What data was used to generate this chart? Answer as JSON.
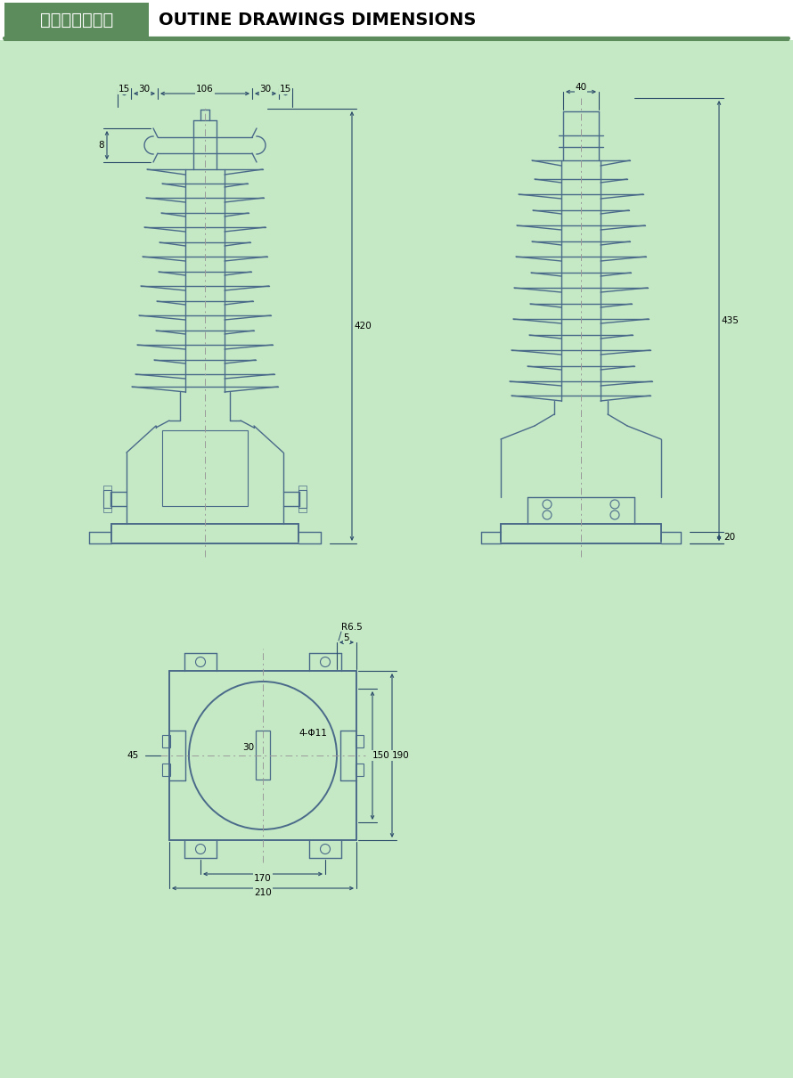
{
  "bg_color": "#c5e8c5",
  "header_bg": "#5c8c5c",
  "header_text_cn": "外形及安装尺寸",
  "header_text_en": "OUTINE DRAWINGS DIMENSIONS",
  "line_color": "#3a5a7a",
  "dim_color": "#2a4a6a",
  "draw_line_color": "#4a6a8a"
}
